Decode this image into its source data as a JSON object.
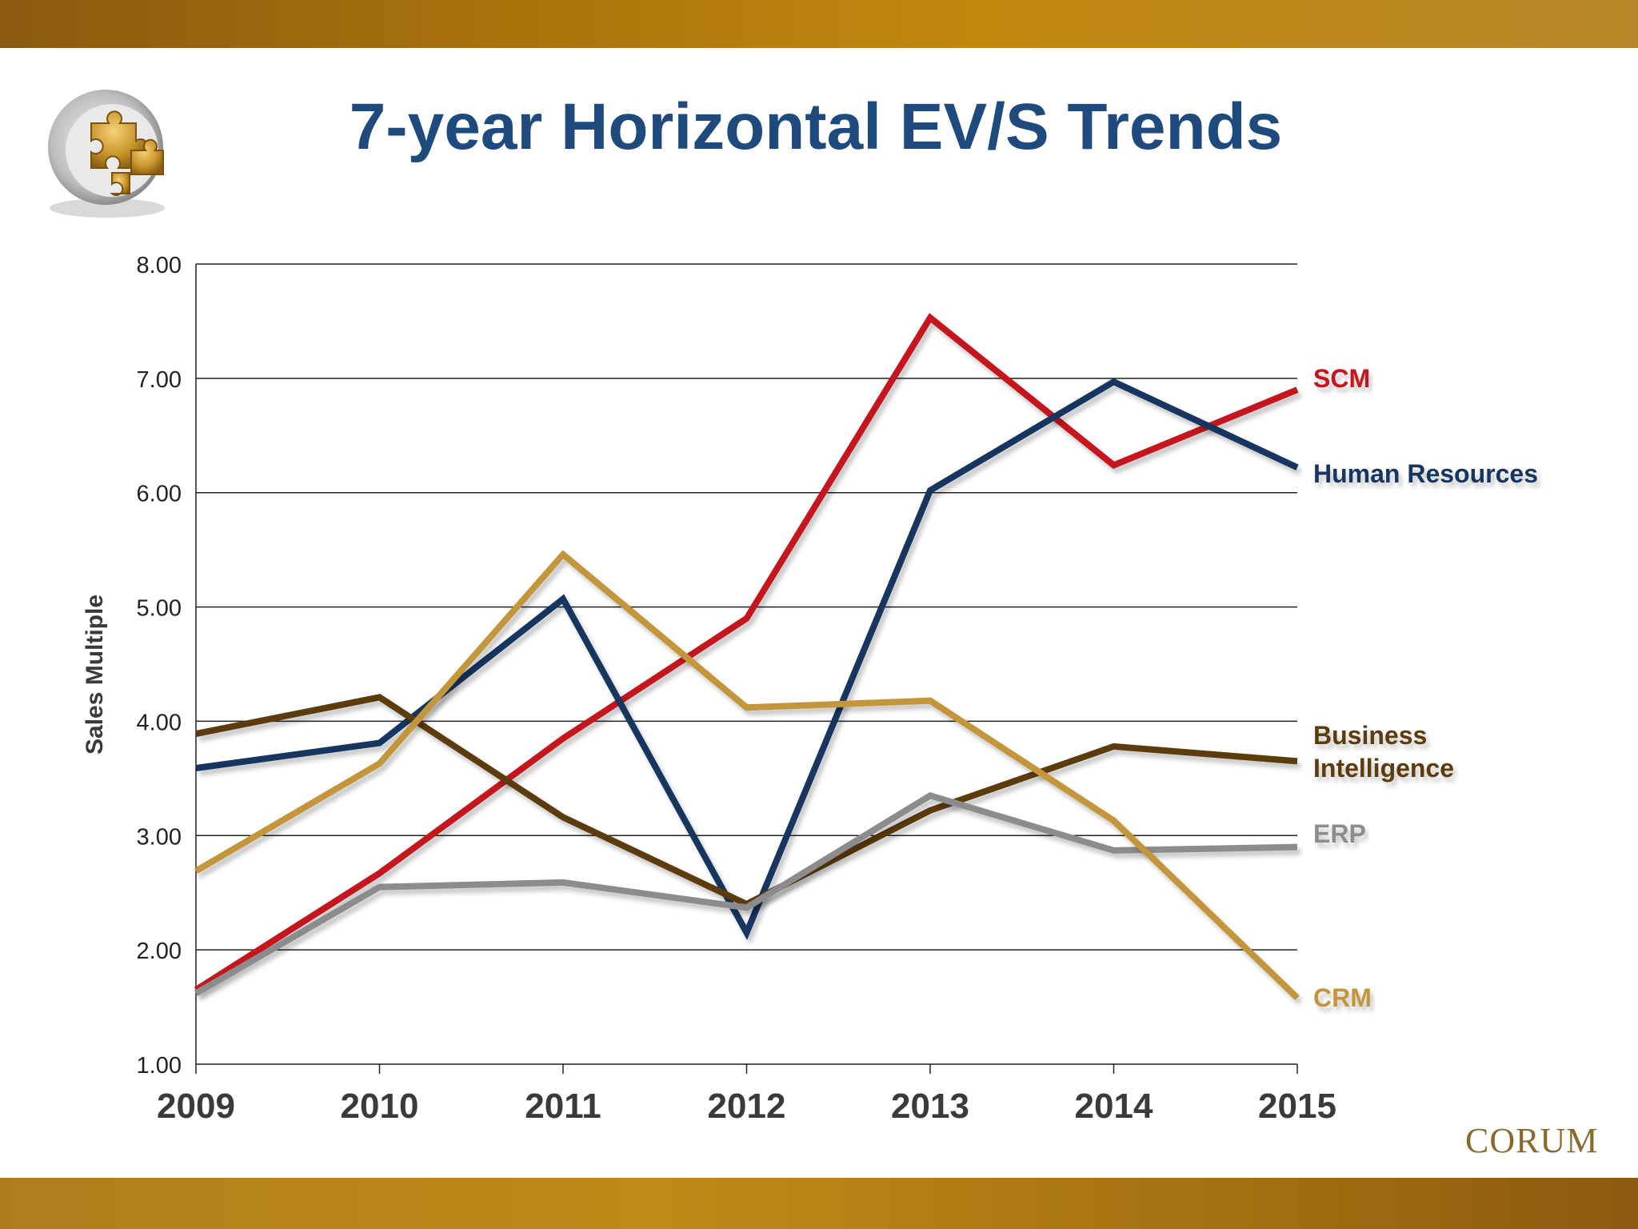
{
  "slide": {
    "title": "7-year Horizontal EV/S Trends",
    "brand": "CORUM",
    "colors": {
      "band": "#b07d1c",
      "title": "#1f4a7e"
    }
  },
  "chart_data": {
    "type": "line",
    "title": "7-year Horizontal EV/S Trends",
    "xlabel": "",
    "ylabel": "Sales Multiple",
    "x": [
      "2009",
      "2010",
      "2011",
      "2012",
      "2013",
      "2014",
      "2015"
    ],
    "ylim": [
      1.0,
      8.0
    ],
    "yticks": [
      "1.00",
      "2.00",
      "3.00",
      "4.00",
      "5.00",
      "6.00",
      "7.00",
      "8.00"
    ],
    "grid": true,
    "legend": "direct labels at right end of lines",
    "series": [
      {
        "name": "SCM",
        "color": "#c4121c",
        "values": [
          1.65,
          2.67,
          3.85,
          4.9,
          7.53,
          6.24,
          6.9
        ]
      },
      {
        "name": "Human Resources",
        "color": "#17345e",
        "values": [
          3.59,
          3.81,
          5.07,
          2.15,
          6.02,
          6.97,
          6.22
        ]
      },
      {
        "name": "Business Intelligence",
        "color": "#5c3b0e",
        "values": [
          3.89,
          4.21,
          3.16,
          2.4,
          3.22,
          3.78,
          3.65
        ]
      },
      {
        "name": "ERP",
        "color": "#8c8c8e",
        "values": [
          1.62,
          2.55,
          2.59,
          2.37,
          3.35,
          2.87,
          2.9
        ]
      },
      {
        "name": "CRM",
        "color": "#c4963a",
        "values": [
          2.69,
          3.63,
          5.46,
          4.12,
          4.18,
          3.13,
          1.58
        ]
      }
    ]
  }
}
